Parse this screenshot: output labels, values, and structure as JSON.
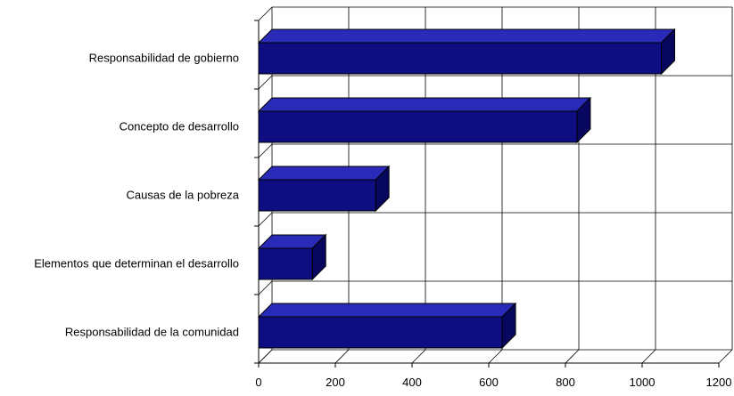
{
  "chart_data": {
    "type": "bar",
    "orientation": "horizontal",
    "style": "3d",
    "categories": [
      "Responsabilidad de gobierno",
      "Concepto de desarrollo",
      "Causas de la pobreza",
      "Elementos que determinan el desarrollo",
      "Responsabilidad de la comunidad"
    ],
    "values": [
      1050,
      830,
      305,
      140,
      635
    ],
    "xlim": [
      0,
      1200
    ],
    "xticks": [
      "0",
      "200",
      "400",
      "600",
      "800",
      "1000",
      "1200"
    ],
    "grid": true,
    "legend": "none",
    "colors": {
      "bar_front": "#0e0e82",
      "bar_top": "#2a2ab8",
      "bar_side": "#070760",
      "bar_edge": "#000000",
      "grid": "#000000"
    }
  }
}
